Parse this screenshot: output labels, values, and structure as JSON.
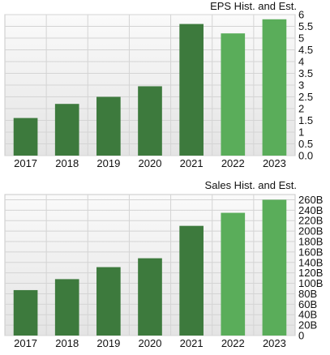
{
  "colors": {
    "historical": "#3d7a3d",
    "estimate": "#5aad5a",
    "grid": "#d4d4d4",
    "plot_top": "#fafafa",
    "plot_bottom": "#e4e4e4"
  },
  "chart_data": [
    {
      "type": "bar",
      "title": "EPS Hist. and Est.",
      "categories": [
        "2017",
        "2018",
        "2019",
        "2020",
        "2021",
        "2022",
        "2023"
      ],
      "values": [
        1.6,
        2.2,
        2.5,
        2.95,
        5.6,
        5.2,
        5.8
      ],
      "estimate": [
        false,
        false,
        false,
        false,
        false,
        true,
        true
      ],
      "ylim": [
        0,
        6
      ],
      "yticks": [
        "0.0",
        "0.5",
        "1",
        "1.5",
        "2",
        "2.5",
        "3",
        "3.5",
        "4",
        "4.5",
        "5",
        "5.5",
        "6"
      ],
      "ytick_values": [
        0,
        0.5,
        1,
        1.5,
        2,
        2.5,
        3,
        3.5,
        4,
        4.5,
        5,
        5.5,
        6
      ],
      "grid": true,
      "axis_position": "right"
    },
    {
      "type": "bar",
      "title": "Sales Hist. and Est.",
      "categories": [
        "2017",
        "2018",
        "2019",
        "2020",
        "2021",
        "2022",
        "2023"
      ],
      "values": [
        87,
        108,
        131,
        148,
        210,
        235,
        260
      ],
      "estimate": [
        false,
        false,
        false,
        false,
        false,
        true,
        true
      ],
      "unit": "B",
      "ylim": [
        0,
        270
      ],
      "yticks": [
        "0",
        "20B",
        "40B",
        "60B",
        "80B",
        "100B",
        "120B",
        "140B",
        "160B",
        "180B",
        "200B",
        "220B",
        "240B",
        "260B"
      ],
      "ytick_values": [
        0,
        20,
        40,
        60,
        80,
        100,
        120,
        140,
        160,
        180,
        200,
        220,
        240,
        260
      ],
      "grid": true,
      "axis_position": "right"
    }
  ]
}
